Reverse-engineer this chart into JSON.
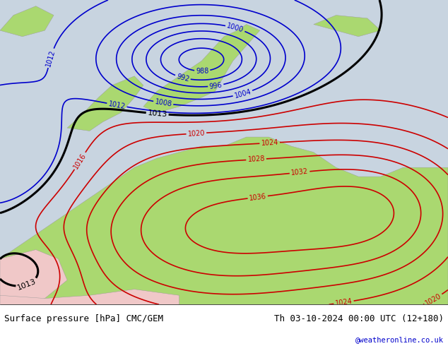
{
  "title_left": "Surface pressure [hPa] CMC/GEM",
  "title_right": "Th 03-10-2024 00:00 UTC (12+180)",
  "credit": "@weatheronline.co.uk",
  "bg_color_ocean": "#c8d4e0",
  "bg_color_land": "#aad870",
  "contour_low_color": "#0000cc",
  "contour_high_color": "#cc0000",
  "contour_front_color": "#000000",
  "label_fontsize": 7,
  "title_fontsize": 9,
  "credit_fontsize": 7.5,
  "credit_color": "#0000cc",
  "low_levels": [
    988,
    992,
    996,
    1000,
    1004,
    1008,
    1012
  ],
  "high_levels": [
    1016,
    1020,
    1024,
    1028,
    1032,
    1036
  ],
  "front_level": 1013
}
